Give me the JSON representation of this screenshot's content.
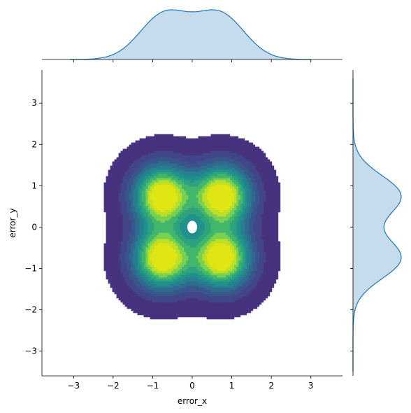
{
  "chart_data": {
    "type": "kde-jointplot",
    "xlabel": "error_x",
    "ylabel": "error_y",
    "xlim": [
      -3.8,
      3.8
    ],
    "ylim": [
      -3.6,
      3.8
    ],
    "x_ticks": [
      -3,
      -2,
      -1,
      0,
      1,
      2,
      3
    ],
    "y_ticks": [
      -3,
      -2,
      -1,
      0,
      1,
      2,
      3
    ],
    "x_tick_labels": [
      "−3",
      "−2",
      "−1",
      "0",
      "1",
      "2",
      "3"
    ],
    "y_tick_labels": [
      "−3",
      "−2",
      "−1",
      "0",
      "1",
      "2",
      "3"
    ],
    "joint": {
      "fill": true,
      "colormap": "viridis",
      "levels": 10,
      "mode_centers": [
        [
          -0.75,
          0.75
        ],
        [
          0.75,
          0.75
        ],
        [
          -0.75,
          -0.75
        ],
        [
          0.75,
          -0.75
        ]
      ],
      "central_hole": [
        0,
        0
      ],
      "outer_extent": {
        "x": [
          -2.5,
          2.5
        ],
        "y": [
          -2.55,
          2.5
        ]
      }
    },
    "marginal_x": {
      "fill": true,
      "peaks_x": [
        -0.7,
        0.7
      ],
      "dip_x": 0,
      "extent": [
        -3.1,
        3.0
      ]
    },
    "marginal_y": {
      "fill": true,
      "peaks_y": [
        -0.75,
        0.75
      ],
      "dip_y": 0,
      "extent": [
        -3.5,
        3.6
      ]
    },
    "colors": {
      "marginal_line": "#1f77b4",
      "marginal_fill": "#c6dbec",
      "levels": [
        "#46327e",
        "#404688",
        "#39568c",
        "#2f6b8e",
        "#277f8e",
        "#21918c",
        "#2ca37d",
        "#42b66b",
        "#7ad151",
        "#bddf26",
        "#e0e515"
      ]
    }
  }
}
